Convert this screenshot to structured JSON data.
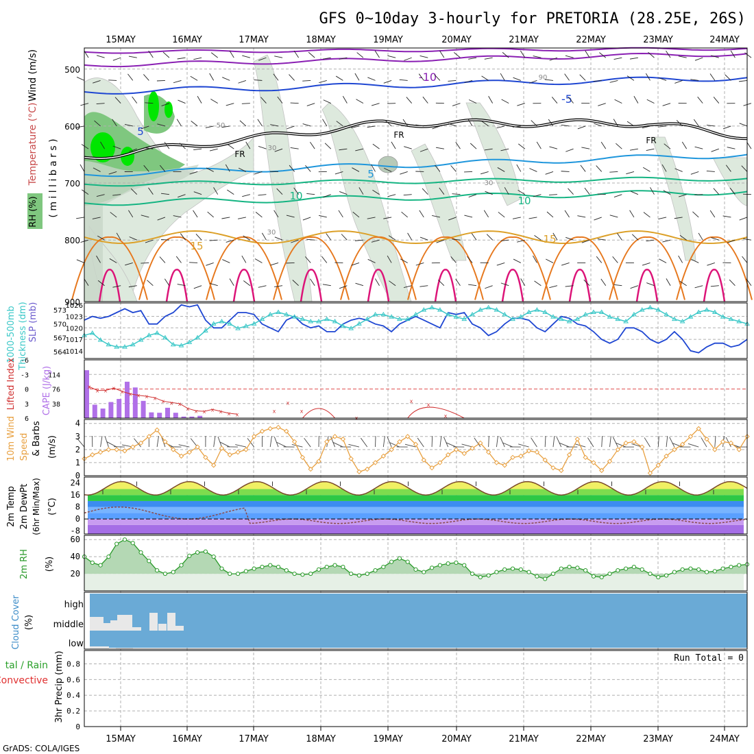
{
  "title": "GFS 0~10day 3-hourly for PRETORIA (28.25E, 26S)",
  "footer": "GrADS: COLA/IGES",
  "dates": [
    "15MAY",
    "16MAY",
    "17MAY",
    "18MAY",
    "19MAY",
    "20MAY",
    "21MAY",
    "22MAY",
    "23MAY",
    "24MAY"
  ],
  "colors": {
    "purple": "#8a1fb3",
    "blue": "#1e46d2",
    "lightblue": "#1e96dc",
    "teal": "#14b482",
    "orange_l": "#dca028",
    "orange": "#e6781e",
    "magenta": "#dc1478",
    "green": "#22c83c",
    "cyan": "#3cc8c8",
    "cloud": "#6aaad6",
    "rh_fill": "#b4d8b4"
  },
  "panels": {
    "upper": {
      "ylabels": [
        "Wind (m/s)",
        "Temperature (°C)",
        "RH (%)",
        "( m i l l i b a r s )"
      ],
      "yticks": [
        "500",
        "600",
        "700",
        "800",
        "900"
      ],
      "contour_labels": {
        "t_m10": "-10",
        "t_m5": "-5",
        "t_m5b": "5",
        "fr1": "FR",
        "fr2": "FR",
        "fr3": "FR",
        "t5": "5",
        "t10a": "10",
        "t10b": "10",
        "t15a": "15",
        "t15b": "15",
        "rh30a": "30",
        "rh30b": "30",
        "rh30c": "30",
        "rh50": "50",
        "rh90": "90"
      }
    },
    "thickness": {
      "ylabels": [
        "1000-500mb",
        "Thickness (dm)",
        "SLP (mb)"
      ],
      "yticks_left": [
        "573",
        "570",
        "567",
        "564"
      ],
      "yticks_right": [
        "1026",
        "1023",
        "1020",
        "1017",
        "1014"
      ]
    },
    "cape": {
      "ylabels": [
        "Lifted Index",
        "CAPE (J/kg)"
      ],
      "yticks_left": [
        "-6",
        "-3",
        "0",
        "3",
        "6"
      ],
      "yticks_right": [
        "114",
        "76",
        "38"
      ]
    },
    "wind10": {
      "ylabels": [
        "10m Wind",
        "Speed",
        "& Barbs",
        "(m/s)"
      ],
      "yticks": [
        "4",
        "3",
        "2",
        "1",
        "0"
      ]
    },
    "temp2m": {
      "ylabels": [
        "2m Temp",
        "2m DewPt",
        "(6hr Min/Max)",
        "(°C)"
      ],
      "yticks": [
        "24",
        "16",
        "8",
        "0",
        "-8"
      ]
    },
    "rh2m": {
      "ylabels": [
        "2m RH",
        "(%)"
      ],
      "yticks": [
        "60",
        "40",
        "20"
      ]
    },
    "cloud": {
      "ylabels": [
        "Cloud Cover",
        "(%)"
      ],
      "levels": [
        "high",
        "middle",
        "low"
      ]
    },
    "precip": {
      "ylabels": [
        "3hr Precip (mm)",
        "tal / Rain",
        "Convective"
      ],
      "yticks": [
        "0.8",
        "0.6",
        "0.4",
        "0.2",
        "0"
      ],
      "run_total": "Run Total = 0"
    }
  },
  "chart_data": {
    "type": "line",
    "x_unit": "forecast hour (3-hourly), start 14MAY 12Z",
    "slp_mb": [
      1022,
      1023,
      1022.5,
      1023,
      1024,
      1025,
      1024,
      1024.5,
      1021,
      1021,
      1023,
      1024,
      1026,
      1025.5,
      1026,
      1022,
      1020,
      1020,
      1022,
      1024,
      1024,
      1023.5,
      1021,
      1020,
      1019,
      1022,
      1023,
      1021,
      1020,
      1020.5,
      1019,
      1019,
      1021,
      1022,
      1022.5,
      1022,
      1021,
      1020.5,
      1019,
      1021,
      1022,
      1023,
      1022,
      1021,
      1020,
      1024,
      1023.5,
      1024,
      1021,
      1020,
      1018,
      1019,
      1021,
      1022.5,
      1022.5,
      1022,
      1020,
      1019,
      1021,
      1023,
      1022.5,
      1021,
      1020.5,
      1019,
      1017,
      1016,
      1017,
      1020,
      1020,
      1019,
      1017,
      1016,
      1017,
      1019,
      1017,
      1014,
      1013.5,
      1015,
      1016,
      1016,
      1015,
      1015.5,
      1017
    ],
    "thickness_dm": [
      567.5,
      568,
      566.5,
      565.5,
      565,
      565,
      565.5,
      566.5,
      567.5,
      568,
      567,
      565.5,
      565.3,
      566,
      567,
      568.5,
      570,
      570.5,
      570,
      569,
      569.5,
      570,
      571,
      572,
      572.5,
      572,
      571.5,
      571,
      570.5,
      570.5,
      571,
      570.5,
      569.5,
      569,
      570,
      571,
      572,
      572,
      571.5,
      571,
      571,
      572,
      573,
      573.5,
      573,
      572,
      571.5,
      571,
      572,
      573,
      573.5,
      573,
      572,
      571,
      571.5,
      572.5,
      573,
      572.5,
      571.5,
      571,
      570.5,
      571,
      572,
      572.5,
      572.5,
      571.5,
      571,
      570.5,
      572,
      573,
      573.5,
      573,
      572,
      571,
      570.5,
      571.5,
      572.5,
      573,
      572.5,
      571.5,
      571,
      570.5,
      570
    ],
    "lifted_index": [
      -0.5,
      0.3,
      0.3,
      -0.2,
      0.5,
      1,
      1.3,
      1.5,
      1.8,
      2.5,
      2.8,
      3,
      4,
      4.5,
      4.6,
      4.2,
      4.6,
      5,
      5.2
    ],
    "cape_jkg": [
      125,
      35,
      25,
      42,
      50,
      95,
      80,
      45,
      15,
      14,
      27,
      14,
      4,
      4,
      6
    ],
    "wind10_ms": [
      1.3,
      1.6,
      1.8,
      2.0,
      2.0,
      1.9,
      2.2,
      2.5,
      3.0,
      3.5,
      2.6,
      2.0,
      1.5,
      1.8,
      2.2,
      1.4,
      0.8,
      2.1,
      1.6,
      1.8,
      2.0,
      3.0,
      3.4,
      3.6,
      3.7,
      3.4,
      2.6,
      1.4,
      0.5,
      1.1,
      2.6,
      3.0,
      2.8,
      1.3,
      0.3,
      0.5,
      1.0,
      1.5,
      2.0,
      2.6,
      3.0,
      2.4,
      1.2,
      0.6,
      1.0,
      1.6,
      2.0,
      1.7,
      2.1,
      2.5,
      1.8,
      1.0,
      0.8,
      1.4,
      1.5,
      1.9,
      1.8,
      1.2,
      0.6,
      0.4,
      1.6,
      2.8,
      1.4,
      1.0,
      0.4,
      1.1,
      2.0,
      2.5,
      2.6,
      2.2,
      0.2,
      0.8,
      1.5,
      2.0,
      2.4,
      3.0,
      3.6,
      2.8,
      2.0,
      2.6,
      2.5,
      2.0,
      3.0
    ],
    "temp2m_c": {
      "min": [
        16,
        16,
        17,
        17,
        16,
        17,
        17,
        17,
        16,
        16
      ],
      "max": [
        25,
        25,
        25,
        25,
        25,
        25,
        25,
        25,
        25,
        24
      ]
    },
    "dewpt2m_c": {
      "approx_range": [
        -2,
        8
      ]
    },
    "rh2m_pct": [
      40,
      33,
      30,
      40,
      55,
      60,
      56,
      45,
      35,
      24,
      20,
      22,
      30,
      41,
      45,
      46,
      40,
      26,
      20,
      20,
      23,
      26,
      28,
      30,
      28,
      24,
      20,
      19,
      20,
      25,
      28,
      30,
      28,
      20,
      18,
      20,
      24,
      28,
      34,
      38,
      34,
      25,
      22,
      27,
      30,
      32,
      33,
      30,
      20,
      16,
      18,
      22,
      25,
      26,
      25,
      22,
      17,
      14,
      20,
      26,
      28,
      27,
      24,
      17,
      16,
      20,
      24,
      26,
      28,
      25,
      20,
      16,
      18,
      22,
      25,
      26,
      25,
      22,
      23,
      26,
      28,
      30,
      31
    ],
    "cloud": {
      "high_pct": 0,
      "middle_blocks": [
        "15MAY",
        "16MAY"
      ],
      "low_blocks": [
        "15MAY"
      ]
    },
    "precip_mm": {
      "run_total": 0
    }
  }
}
